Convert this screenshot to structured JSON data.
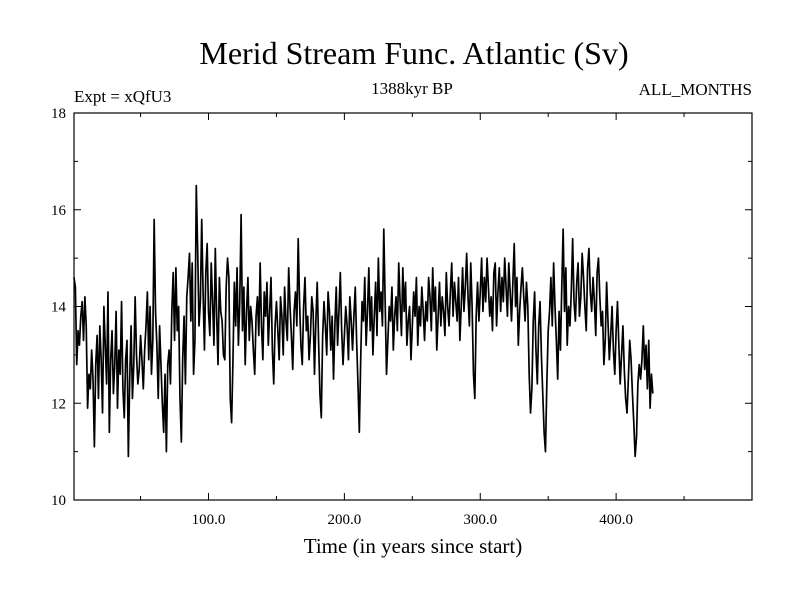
{
  "chart_data": {
    "type": "line",
    "title": "Merid Stream Func. Atlantic (Sv)",
    "subtitle_left": "Expt = xQfU3",
    "subtitle_center": "1388kyr BP",
    "subtitle_right": "ALL_MONTHS",
    "xlabel": "Time (in years since start)",
    "ylabel": "",
    "xlim": [
      1,
      500
    ],
    "ylim": [
      10,
      18
    ],
    "xticks": [
      100,
      200,
      300,
      400
    ],
    "xtick_labels": [
      "100.0",
      "200.0",
      "300.0",
      "400.0"
    ],
    "yticks": [
      10,
      12,
      14,
      16,
      18
    ],
    "ytick_labels": [
      "10",
      "12",
      "14",
      "16",
      "18"
    ],
    "series": [
      {
        "name": "Merid Stream Func. Atlantic",
        "x_start": 1,
        "x_step": 1,
        "values": [
          14.6,
          14.4,
          12.8,
          13.5,
          13.2,
          13.8,
          14.1,
          13.3,
          14.2,
          13.6,
          11.9,
          12.6,
          12.3,
          13.1,
          12.5,
          11.1,
          12.8,
          13.4,
          12.1,
          13.6,
          12.9,
          11.8,
          14.0,
          13.2,
          12.4,
          14.3,
          11.4,
          12.9,
          13.5,
          12.2,
          12.8,
          13.9,
          11.9,
          13.1,
          12.6,
          14.1,
          12.3,
          11.7,
          12.9,
          13.3,
          10.9,
          12.5,
          13.6,
          12.1,
          12.8,
          14.2,
          13.0,
          12.4,
          12.7,
          13.4,
          12.9,
          12.3,
          13.1,
          13.6,
          14.3,
          12.9,
          14.0,
          12.6,
          13.3,
          15.8,
          13.9,
          13.2,
          12.1,
          13.6,
          12.8,
          12.0,
          11.4,
          12.6,
          11.0,
          12.8,
          13.1,
          12.4,
          13.9,
          14.7,
          13.3,
          14.8,
          13.5,
          14.0,
          12.1,
          11.2,
          12.9,
          13.8,
          12.4,
          14.2,
          14.6,
          15.1,
          13.7,
          14.9,
          12.6,
          13.3,
          16.5,
          15.2,
          13.6,
          14.1,
          15.8,
          14.3,
          13.1,
          14.7,
          15.3,
          13.9,
          13.4,
          14.9,
          14.1,
          13.2,
          15.2,
          13.8,
          12.8,
          14.6,
          13.9,
          13.7,
          13.0,
          12.9,
          14.4,
          15.0,
          14.6,
          12.1,
          11.6,
          12.9,
          14.5,
          13.6,
          14.8,
          13.2,
          14.1,
          15.9,
          13.5,
          14.4,
          12.8,
          13.9,
          14.6,
          13.3,
          14.0,
          13.7,
          13.1,
          12.6,
          13.8,
          14.2,
          13.4,
          14.9,
          13.6,
          12.9,
          14.3,
          13.8,
          14.5,
          13.2,
          13.9,
          14.6,
          13.1,
          12.4,
          13.6,
          14.1,
          13.5,
          12.9,
          14.2,
          13.8,
          13.0,
          14.4,
          13.7,
          13.3,
          14.8,
          14.0,
          13.4,
          12.7,
          13.9,
          14.3,
          13.6,
          15.4,
          14.1,
          13.2,
          12.8,
          14.0,
          14.6,
          13.5,
          13.8,
          12.9,
          13.4,
          14.2,
          13.9,
          12.6,
          13.7,
          14.5,
          13.3,
          12.2,
          11.7,
          13.4,
          14.1,
          13.6,
          13.0,
          14.3,
          13.9,
          13.1,
          13.8,
          12.5,
          13.6,
          14.4,
          13.2,
          13.9,
          14.7,
          13.5,
          12.8,
          13.4,
          14.0,
          13.6,
          12.9,
          14.2,
          13.7,
          13.1,
          13.8,
          14.4,
          13.3,
          12.4,
          11.4,
          12.9,
          14.1,
          13.7,
          14.6,
          13.2,
          13.9,
          14.8,
          13.5,
          14.2,
          13.0,
          13.8,
          14.5,
          13.4,
          15.0,
          13.9,
          14.3,
          13.6,
          15.6,
          14.1,
          12.6,
          13.3,
          14.0,
          13.7,
          14.4,
          13.1,
          13.8,
          14.2,
          13.5,
          14.9,
          14.1,
          13.4,
          14.8,
          13.9,
          14.5,
          13.2,
          13.7,
          14.0,
          12.9,
          13.6,
          14.3,
          13.8,
          14.6,
          13.2,
          14.0,
          13.6,
          14.4,
          13.9,
          13.3,
          14.1,
          13.7,
          14.6,
          14.2,
          13.5,
          14.8,
          13.9,
          14.4,
          13.1,
          13.8,
          14.5,
          13.6,
          14.2,
          13.9,
          13.4,
          14.7,
          14.0,
          13.6,
          14.3,
          14.9,
          13.8,
          14.5,
          14.1,
          13.7,
          14.6,
          13.3,
          14.0,
          14.8,
          13.9,
          14.4,
          15.1,
          14.2,
          13.6,
          14.9,
          14.0,
          12.6,
          12.1,
          13.8,
          14.5,
          13.7,
          14.3,
          15.0,
          13.9,
          14.6,
          14.1,
          15.0,
          14.4,
          13.8,
          14.2,
          13.5,
          14.7,
          14.9,
          13.6,
          14.3,
          14.8,
          13.9,
          14.6,
          14.1,
          15.0,
          14.4,
          13.8,
          14.9,
          14.3,
          13.7,
          14.5,
          15.3,
          14.0,
          14.6,
          13.2,
          13.9,
          14.4,
          14.8,
          14.2,
          13.7,
          14.5,
          14.0,
          12.6,
          11.8,
          12.3,
          13.7,
          14.3,
          13.1,
          12.4,
          13.6,
          14.1,
          13.0,
          12.2,
          11.4,
          11.0,
          12.4,
          13.5,
          13.9,
          14.6,
          13.6,
          14.9,
          14.0,
          13.3,
          12.5,
          13.9,
          13.1,
          14.4,
          15.6,
          13.9,
          14.8,
          13.2,
          14.0,
          13.6,
          14.3,
          15.4,
          14.1,
          13.7,
          14.5,
          14.9,
          13.8,
          14.2,
          15.1,
          14.6,
          14.0,
          13.5,
          14.8,
          15.2,
          14.3,
          13.9,
          14.6,
          14.1,
          13.4,
          14.7,
          15.0,
          14.2,
          13.6,
          13.9,
          12.8,
          13.3,
          14.5,
          13.7,
          12.9,
          13.4,
          14.0,
          13.1,
          12.6,
          13.5,
          14.1,
          13.2,
          12.4,
          13.0,
          13.6,
          12.7,
          12.1,
          11.8,
          12.5,
          13.3,
          12.9,
          12.2,
          11.6,
          10.9,
          11.3,
          12.4,
          12.8,
          12.5,
          12.9,
          13.6,
          12.7,
          13.2,
          12.3,
          13.3,
          11.9,
          12.6,
          12.2
        ]
      }
    ]
  }
}
